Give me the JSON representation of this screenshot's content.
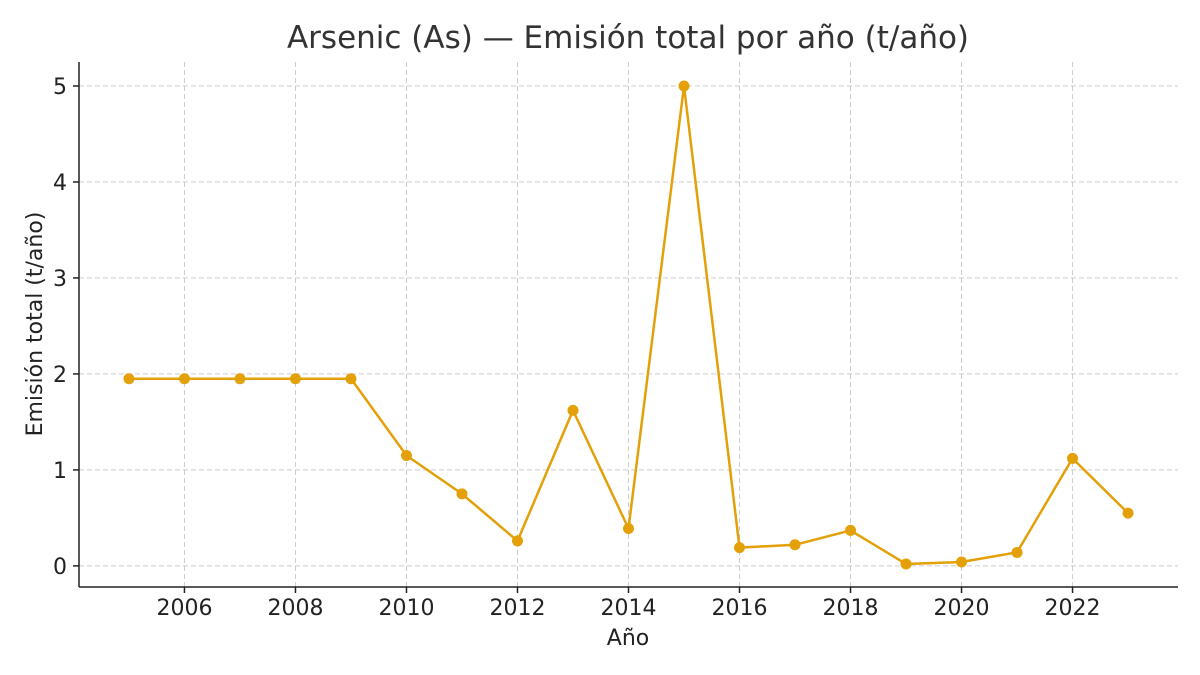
{
  "chart_data": {
    "type": "line",
    "title": "Arsenic (As) — Emisión total por año (t/año)",
    "xlabel": "Año",
    "ylabel": "Emisión total (t/año)",
    "xlim": [
      2004.1,
      2023.9
    ],
    "ylim": [
      -0.22,
      5.25
    ],
    "xticks": [
      "2006",
      "2008",
      "2010",
      "2012",
      "2014",
      "2016",
      "2018",
      "2020",
      "2022"
    ],
    "yticks": [
      "0",
      "1",
      "2",
      "3",
      "4",
      "5"
    ],
    "grid": true,
    "color": "#E3A008",
    "series": [
      {
        "x": [
          2005,
          2006,
          2007,
          2008,
          2009,
          2010,
          2011,
          2012,
          2013,
          2014,
          2015,
          2016,
          2017,
          2018,
          2019,
          2020,
          2021,
          2022,
          2023
        ],
        "values": [
          1.95,
          1.95,
          1.95,
          1.95,
          1.95,
          1.15,
          0.75,
          0.26,
          1.62,
          0.39,
          5.0,
          0.19,
          0.22,
          0.37,
          0.02,
          0.04,
          0.14,
          1.12,
          0.55
        ]
      }
    ]
  }
}
